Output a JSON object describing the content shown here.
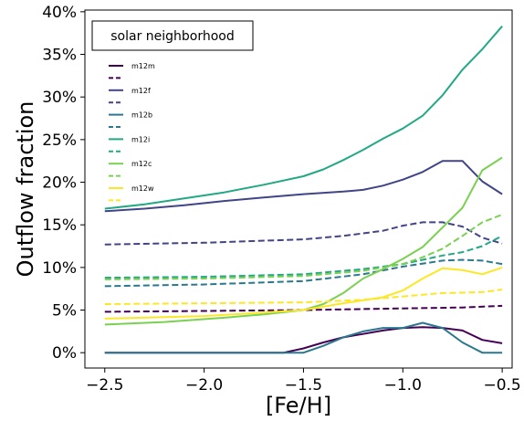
{
  "chart_data": {
    "type": "line",
    "xlabel": "[Fe/H]",
    "ylabel": "Outflow fraction",
    "xlim": [
      -2.6,
      -0.45
    ],
    "ylim": [
      -1.8,
      40.2
    ],
    "x_ticks": [
      {
        "value": -2.5,
        "label": "−2.5"
      },
      {
        "value": -2.0,
        "label": "−2.0"
      },
      {
        "value": -1.5,
        "label": "−1.5"
      },
      {
        "value": -1.0,
        "label": "−1.0"
      },
      {
        "value": -0.5,
        "label": "−0.5"
      }
    ],
    "y_ticks": [
      {
        "value": 0,
        "label": "0%"
      },
      {
        "value": 5,
        "label": "5%"
      },
      {
        "value": 10,
        "label": "10%"
      },
      {
        "value": 15,
        "label": "15%"
      },
      {
        "value": 20,
        "label": "20%"
      },
      {
        "value": 25,
        "label": "25%"
      },
      {
        "value": 30,
        "label": "30%"
      },
      {
        "value": 35,
        "label": "35%"
      },
      {
        "value": 40,
        "label": "40%"
      }
    ],
    "annotation": "solar neighborhood",
    "legend_placement": "upper-left",
    "grid": false,
    "series": [
      {
        "name": "m12m",
        "legend": "m12m",
        "color": "#440154",
        "dash": "solid",
        "x": [
          -2.5,
          -1.6,
          -1.5,
          -1.4,
          -1.3,
          -1.2,
          -1.1,
          -1.0,
          -0.9,
          -0.8,
          -0.7,
          -0.6,
          -0.5
        ],
        "y": [
          0,
          0,
          0.5,
          1.2,
          1.8,
          2.2,
          2.6,
          2.9,
          3.0,
          2.9,
          2.6,
          1.5,
          1.1
        ]
      },
      {
        "name": "m12m (dashed)",
        "legend": "",
        "color": "#440154",
        "dash": "dashed",
        "x": [
          -2.5,
          -2.0,
          -1.5,
          -1.0,
          -0.7,
          -0.5
        ],
        "y": [
          4.8,
          4.9,
          5.0,
          5.2,
          5.3,
          5.5
        ]
      },
      {
        "name": "m12f",
        "legend": "m12f",
        "color": "#414487",
        "dash": "solid",
        "x": [
          -2.5,
          -2.3,
          -2.1,
          -1.9,
          -1.7,
          -1.5,
          -1.3,
          -1.2,
          -1.1,
          -1.0,
          -0.9,
          -0.8,
          -0.7,
          -0.6,
          -0.5
        ],
        "y": [
          16.6,
          16.9,
          17.3,
          17.8,
          18.2,
          18.6,
          18.9,
          19.1,
          19.6,
          20.3,
          21.2,
          22.5,
          22.5,
          20.1,
          18.6
        ]
      },
      {
        "name": "m12f (dashed)",
        "legend": "",
        "color": "#414487",
        "dash": "dashed",
        "x": [
          -2.5,
          -2.0,
          -1.5,
          -1.3,
          -1.1,
          -1.0,
          -0.9,
          -0.8,
          -0.7,
          -0.6,
          -0.5
        ],
        "y": [
          12.7,
          12.9,
          13.3,
          13.7,
          14.3,
          14.9,
          15.3,
          15.3,
          14.8,
          13.5,
          12.8
        ]
      },
      {
        "name": "m12b",
        "legend": "m12b",
        "color": "#2a788e",
        "dash": "solid",
        "x": [
          -2.5,
          -1.6,
          -1.5,
          -1.4,
          -1.3,
          -1.2,
          -1.1,
          -1.0,
          -0.9,
          -0.8,
          -0.7,
          -0.6,
          -0.5
        ],
        "y": [
          0,
          0,
          0,
          0.8,
          1.8,
          2.5,
          2.9,
          2.9,
          3.5,
          2.9,
          1.2,
          0,
          0
        ]
      },
      {
        "name": "m12b (dashed)",
        "legend": "",
        "color": "#2a788e",
        "dash": "dashed",
        "x": [
          -2.5,
          -2.0,
          -1.5,
          -1.2,
          -1.0,
          -0.8,
          -0.7,
          -0.6,
          -0.5
        ],
        "y": [
          7.8,
          8.0,
          8.4,
          9.2,
          10.1,
          10.8,
          10.9,
          10.8,
          10.4
        ]
      },
      {
        "name": "m12i",
        "legend": "m12i",
        "color": "#22a884",
        "dash": "solid",
        "x": [
          -2.5,
          -2.3,
          -2.1,
          -1.9,
          -1.7,
          -1.5,
          -1.4,
          -1.3,
          -1.2,
          -1.1,
          -1.0,
          -0.9,
          -0.8,
          -0.7,
          -0.6,
          -0.5
        ],
        "y": [
          16.9,
          17.4,
          18.1,
          18.8,
          19.7,
          20.7,
          21.5,
          22.6,
          23.8,
          25.1,
          26.3,
          27.8,
          30.2,
          33.2,
          35.6,
          38.3
        ]
      },
      {
        "name": "m12i (dashed)",
        "legend": "",
        "color": "#22a884",
        "dash": "dashed",
        "x": [
          -2.5,
          -2.0,
          -1.5,
          -1.2,
          -1.0,
          -0.9,
          -0.8,
          -0.7,
          -0.6,
          -0.5
        ],
        "y": [
          8.8,
          8.9,
          9.2,
          9.8,
          10.4,
          10.9,
          11.4,
          11.8,
          12.5,
          13.7
        ]
      },
      {
        "name": "m12c",
        "legend": "m12c",
        "color": "#7ad151",
        "dash": "solid",
        "x": [
          -2.5,
          -2.2,
          -1.9,
          -1.7,
          -1.5,
          -1.4,
          -1.3,
          -1.2,
          -1.1,
          -1.0,
          -0.9,
          -0.8,
          -0.7,
          -0.6,
          -0.5
        ],
        "y": [
          3.3,
          3.6,
          4.1,
          4.5,
          5.0,
          5.7,
          7.0,
          8.7,
          9.8,
          11.0,
          12.4,
          14.7,
          17.0,
          21.4,
          22.9
        ]
      },
      {
        "name": "m12c (dashed)",
        "legend": "",
        "color": "#7ad151",
        "dash": "dashed",
        "x": [
          -2.5,
          -2.0,
          -1.5,
          -1.2,
          -1.0,
          -0.9,
          -0.8,
          -0.7,
          -0.6,
          -0.5
        ],
        "y": [
          8.6,
          8.7,
          9.0,
          9.6,
          10.4,
          11.2,
          12.2,
          13.7,
          15.3,
          16.2
        ]
      },
      {
        "name": "m12w",
        "legend": "m12w",
        "color": "#fde725",
        "dash": "solid",
        "x": [
          -2.5,
          -2.0,
          -1.7,
          -1.5,
          -1.3,
          -1.1,
          -1.0,
          -0.9,
          -0.8,
          -0.7,
          -0.6,
          -0.5
        ],
        "y": [
          4.0,
          4.3,
          4.7,
          5.0,
          5.8,
          6.5,
          7.3,
          8.7,
          9.9,
          9.7,
          9.2,
          10.0
        ]
      },
      {
        "name": "m12w (dashed)",
        "legend": "",
        "color": "#fde725",
        "dash": "dashed",
        "x": [
          -2.5,
          -2.0,
          -1.5,
          -1.2,
          -1.0,
          -0.8,
          -0.6,
          -0.5
        ],
        "y": [
          5.7,
          5.8,
          5.9,
          6.2,
          6.6,
          7.0,
          7.1,
          7.4
        ]
      }
    ]
  }
}
